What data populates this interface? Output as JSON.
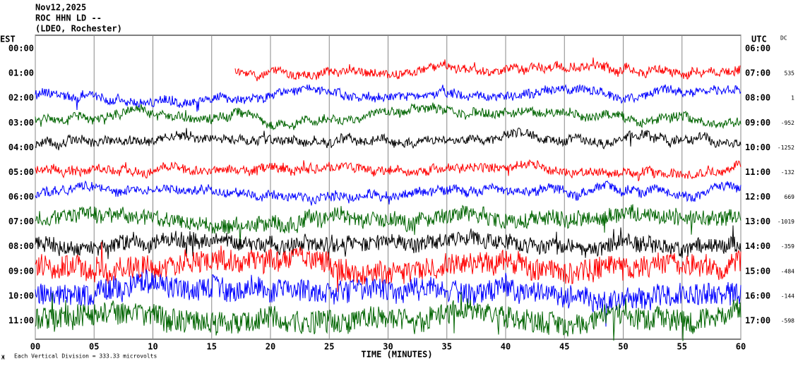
{
  "header": {
    "lines": [
      "Nov12,2025",
      "ROC HHN LD --",
      "(LDEO, Rochester)"
    ]
  },
  "left_axis_title": "EST",
  "right_axis_title": "UTC",
  "dc_title": "DC",
  "rows": [
    {
      "est": "00:00",
      "utc": "06:00",
      "color": "#ff0000"
    },
    {
      "est": "01:00",
      "utc": "07:00",
      "dc": 535,
      "color": "#0000ff"
    },
    {
      "est": "02:00",
      "utc": "08:00",
      "dc": 1,
      "color": "#006400"
    },
    {
      "est": "03:00",
      "utc": "09:00",
      "dc": -952,
      "color": "#000000"
    },
    {
      "est": "04:00",
      "utc": "10:00",
      "dc": -1252,
      "color": "#ff0000"
    },
    {
      "est": "05:00",
      "utc": "11:00",
      "dc": -132,
      "color": "#0000ff"
    },
    {
      "est": "06:00",
      "utc": "12:00",
      "dc": 669,
      "color": "#006400"
    },
    {
      "est": "07:00",
      "utc": "13:00",
      "dc": -1019,
      "color": "#000000"
    },
    {
      "est": "08:00",
      "utc": "14:00",
      "dc": -359,
      "color": "#ff0000"
    },
    {
      "est": "09:00",
      "utc": "15:00",
      "dc": -484,
      "color": "#0000ff"
    },
    {
      "est": "10:00",
      "utc": "16:00",
      "dc": -144,
      "color": "#006400"
    },
    {
      "est": "11:00",
      "utc": "17:00",
      "dc": -598
    }
  ],
  "xlim": [
    0,
    60
  ],
  "xticks": [
    {
      "value": 0,
      "label": "00"
    },
    {
      "value": 5,
      "label": "05"
    },
    10,
    15,
    20,
    25,
    30,
    35,
    40,
    45,
    50,
    55,
    60
  ],
  "x_label": "TIME (MINUTES)",
  "footnote": "Each Vertical Division =  333.33 microvolts"
}
